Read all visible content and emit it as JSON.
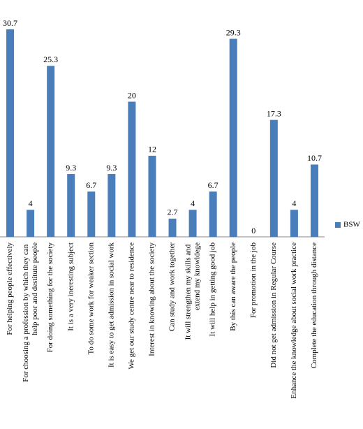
{
  "chart_data": {
    "type": "bar",
    "categories": [
      "For helping people effectively",
      "For choosing a profession by which they can help poor and destitute people",
      "For doing something for the society",
      "It is a very ineresting subject",
      "To do some work for weaker section",
      "It is easy to get admission in social work",
      "We get our study centre near to residence",
      "Interest in knowing about the society",
      "Can study and work together",
      "It will strengthen my skills and extend my knowldege",
      "It will help in getting good job",
      "By this can aware the people",
      "For promotion in the job",
      "Did not get admission in Regular Course",
      "Enhance the knowledge about social work practice",
      "Complete the education through distance"
    ],
    "series": [
      {
        "name": "BSW",
        "color": "#4a7ebb",
        "values": [
          30.7,
          4,
          25.3,
          9.3,
          6.7,
          9.3,
          20,
          12,
          2.7,
          4,
          6.7,
          29.3,
          0,
          17.3,
          4,
          10.7
        ]
      }
    ],
    "legend": "right"
  }
}
